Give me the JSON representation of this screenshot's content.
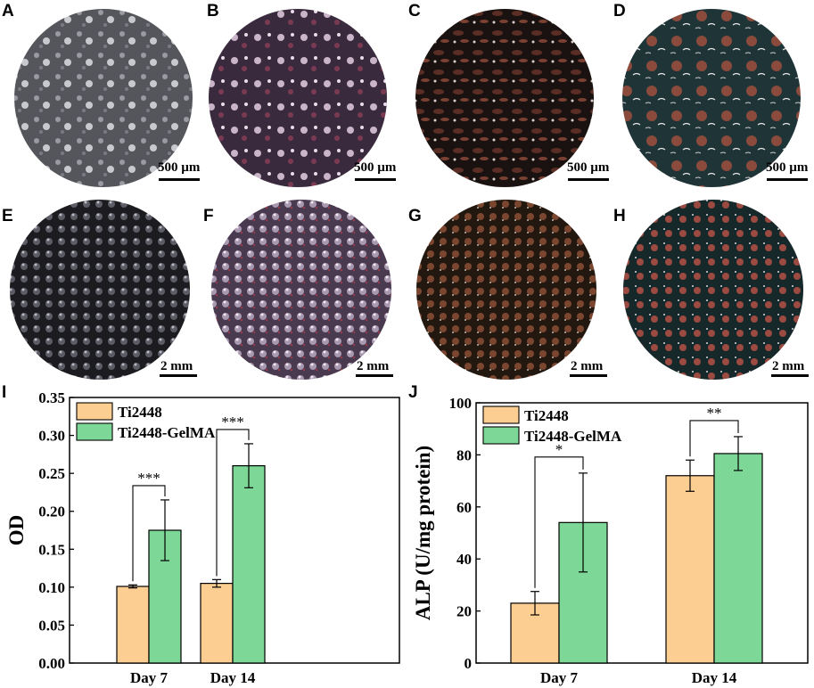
{
  "panels": {
    "A": "A",
    "B": "B",
    "C": "C",
    "D": "D",
    "E": "E",
    "F": "F",
    "G": "G",
    "H": "H",
    "I": "I",
    "J": "J"
  },
  "scale_labels": {
    "top": "500 µm",
    "bottom": "2 mm"
  },
  "image_icons": {
    "A": "grey-scaffold-micrograph",
    "B": "purple-scaffold-micrograph",
    "C": "dark-red-scaffold-micrograph",
    "D": "teal-red-scaffold-micrograph",
    "E": "grey-lattice-micrograph",
    "F": "purple-lattice-micrograph",
    "G": "brown-lattice-micrograph",
    "H": "teal-red-lattice-micrograph"
  },
  "colors": {
    "ti2448": "#FDCE92",
    "ti2448_gelma": "#7DD898"
  },
  "chart_data": [
    {
      "type": "bar",
      "panel": "I",
      "categories": [
        "Day 7",
        "Day 14"
      ],
      "series": [
        {
          "name": "Ti2448",
          "values": [
            0.101,
            0.105
          ],
          "errors": [
            0.002,
            0.005
          ]
        },
        {
          "name": "Ti2448-GelMA",
          "values": [
            0.175,
            0.26
          ],
          "errors": [
            0.04,
            0.029
          ]
        }
      ],
      "ylabel": "OD",
      "xlabel": "",
      "ylim": [
        0,
        0.35
      ],
      "yticks": [
        "0.00",
        "0.05",
        "0.10",
        "0.15",
        "0.20",
        "0.25",
        "0.30",
        "0.35"
      ],
      "significance": [
        "***",
        "***"
      ],
      "legend": "top-left"
    },
    {
      "type": "bar",
      "panel": "J",
      "categories": [
        "Day 7",
        "Day 14"
      ],
      "series": [
        {
          "name": "Ti2448",
          "values": [
            23,
            72
          ],
          "errors": [
            4.5,
            6
          ]
        },
        {
          "name": "Ti2448-GelMA",
          "values": [
            54,
            80.5
          ],
          "errors": [
            19,
            6.5
          ]
        }
      ],
      "ylabel": "ALP (U/mg protein)",
      "xlabel": "",
      "ylim": [
        0,
        100
      ],
      "yticks": [
        "0",
        "20",
        "40",
        "60",
        "80",
        "100"
      ],
      "significance": [
        "*",
        "**"
      ],
      "legend": "top-left"
    }
  ]
}
